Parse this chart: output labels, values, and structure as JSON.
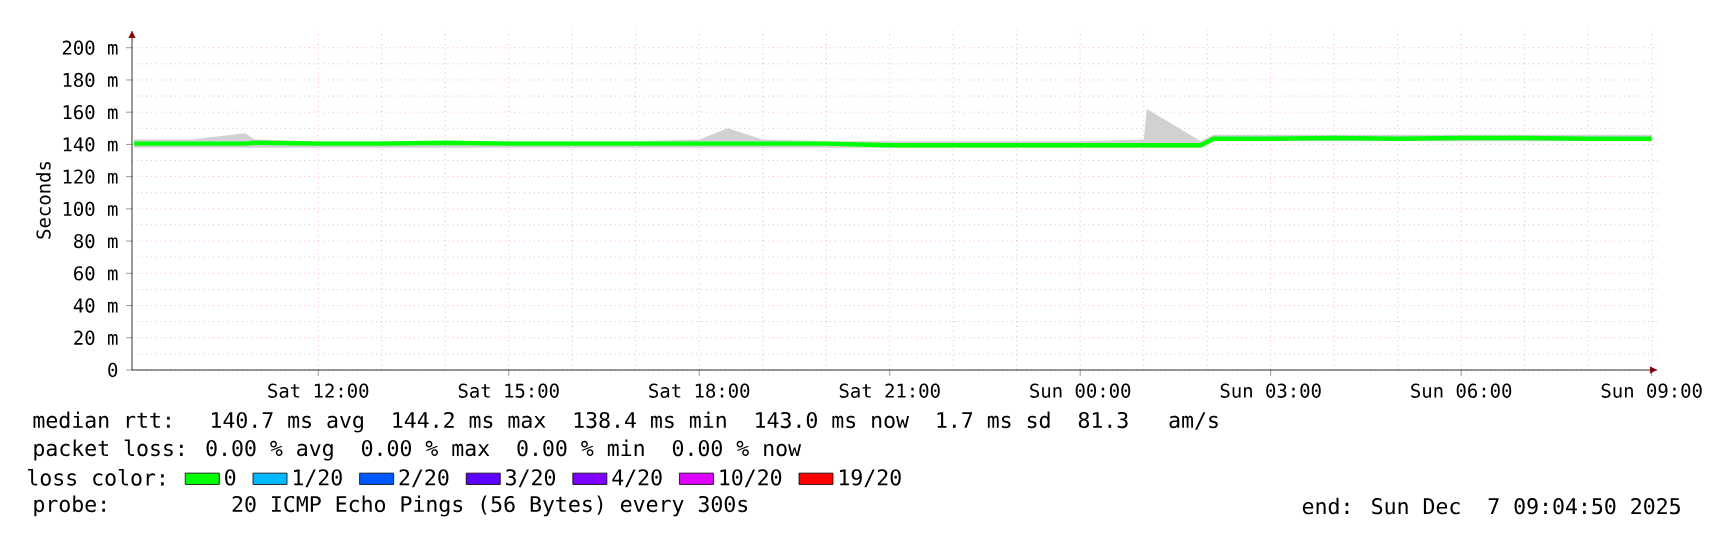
{
  "chart_data": {
    "type": "line",
    "ylabel": "Seconds",
    "legend_title": "loss color:",
    "legend": "bottom",
    "grid": true,
    "x": [
      "2025-12-06T09:06",
      "2025-12-06T10:00",
      "2025-12-06T10:51",
      "2025-12-06T11:00",
      "2025-12-06T12:00",
      "2025-12-06T13:00",
      "2025-12-06T14:00",
      "2025-12-06T15:00",
      "2025-12-06T16:00",
      "2025-12-06T17:00",
      "2025-12-06T18:00",
      "2025-12-06T18:27",
      "2025-12-06T19:00",
      "2025-12-06T20:00",
      "2025-12-06T21:00",
      "2025-12-06T22:00",
      "2025-12-06T23:00",
      "2025-12-07T00:00",
      "2025-12-07T01:00",
      "2025-12-07T01:03",
      "2025-12-07T01:54",
      "2025-12-07T02:06",
      "2025-12-07T03:00",
      "2025-12-07T04:00",
      "2025-12-07T05:00",
      "2025-12-07T06:00",
      "2025-12-07T07:00",
      "2025-12-07T08:00",
      "2025-12-07T09:00"
    ],
    "xlim": [
      "2025-12-06T09:04",
      "2025-12-07T09:06"
    ],
    "xticks": [
      {
        "value": "2025-12-06T12:00",
        "label": "Sat 12:00"
      },
      {
        "value": "2025-12-06T15:00",
        "label": "Sat 15:00"
      },
      {
        "value": "2025-12-06T18:00",
        "label": "Sat 18:00"
      },
      {
        "value": "2025-12-06T21:00",
        "label": "Sat 21:00"
      },
      {
        "value": "2025-12-07T00:00",
        "label": "Sun 00:00"
      },
      {
        "value": "2025-12-07T03:00",
        "label": "Sun 03:00"
      },
      {
        "value": "2025-12-07T06:00",
        "label": "Sun 06:00"
      },
      {
        "value": "2025-12-07T09:00",
        "label": "Sun 09:00"
      }
    ],
    "ylim": [
      0,
      211
    ],
    "yticks": [
      0,
      {
        "value": 20,
        "label": "20 m"
      },
      {
        "value": 40,
        "label": "40 m"
      },
      {
        "value": 60,
        "label": "60 m"
      },
      {
        "value": 80,
        "label": "80 m"
      },
      {
        "value": 100,
        "label": "100 m"
      },
      {
        "value": 120,
        "label": "120 m"
      },
      {
        "value": 140,
        "label": "140 m"
      },
      {
        "value": 160,
        "label": "160 m"
      },
      {
        "value": 180,
        "label": "180 m"
      },
      {
        "value": 200,
        "label": "200 m"
      }
    ],
    "series": [
      {
        "name": "0",
        "color": "#00ff00",
        "values": [
          140.5,
          140.5,
          140.5,
          141,
          140.5,
          140.5,
          141,
          140.5,
          140.5,
          140.5,
          140.5,
          140.5,
          140.5,
          140.5,
          139.5,
          139.5,
          139.5,
          139.5,
          139.5,
          139.5,
          139.5,
          143.5,
          143.5,
          144,
          143.5,
          144,
          144,
          143.5,
          143.5
        ],
        "lower": [
          138,
          138,
          138,
          138,
          138,
          138,
          138,
          138,
          138,
          138,
          138,
          138,
          138,
          138,
          138,
          138,
          138,
          138,
          138,
          138,
          138,
          142,
          142,
          142,
          142,
          142,
          142,
          142,
          142
        ],
        "upper": [
          143,
          143,
          147,
          143,
          142,
          142,
          142,
          142,
          142,
          142,
          143,
          150,
          143,
          142,
          142,
          142,
          142,
          142,
          143,
          162,
          142,
          146,
          146,
          146,
          146,
          146,
          146,
          146,
          146
        ]
      },
      {
        "name": "1/20",
        "color": "#00b8ff",
        "values": [
          null,
          null,
          null,
          null,
          null,
          null,
          null,
          null,
          null,
          null,
          null,
          null,
          null,
          null,
          null,
          null,
          null,
          null,
          null,
          null,
          null,
          null,
          null,
          null,
          null,
          null,
          null,
          null,
          null
        ]
      },
      {
        "name": "2/20",
        "color": "#0059ff",
        "values": [
          null,
          null,
          null,
          null,
          null,
          null,
          null,
          null,
          null,
          null,
          null,
          null,
          null,
          null,
          null,
          null,
          null,
          null,
          null,
          null,
          null,
          null,
          null,
          null,
          null,
          null,
          null,
          null,
          null
        ]
      },
      {
        "name": "3/20",
        "color": "#5e00ff",
        "values": [
          null,
          null,
          null,
          null,
          null,
          null,
          null,
          null,
          null,
          null,
          null,
          null,
          null,
          null,
          null,
          null,
          null,
          null,
          null,
          null,
          null,
          null,
          null,
          null,
          null,
          null,
          null,
          null,
          null
        ]
      },
      {
        "name": "4/20",
        "color": "#7e00ff",
        "values": [
          null,
          null,
          null,
          null,
          null,
          null,
          null,
          null,
          null,
          null,
          null,
          null,
          null,
          null,
          null,
          null,
          null,
          null,
          null,
          null,
          null,
          null,
          null,
          null,
          null,
          null,
          null,
          null,
          null
        ]
      },
      {
        "name": "10/20",
        "color": "#dd00ff",
        "values": [
          null,
          null,
          null,
          null,
          null,
          null,
          null,
          null,
          null,
          null,
          null,
          null,
          null,
          null,
          null,
          null,
          null,
          null,
          null,
          null,
          null,
          null,
          null,
          null,
          null,
          null,
          null,
          null,
          null
        ]
      },
      {
        "name": "19/20",
        "color": "#ff0000",
        "values": [
          null,
          null,
          null,
          null,
          null,
          null,
          null,
          null,
          null,
          null,
          null,
          null,
          null,
          null,
          null,
          null,
          null,
          null,
          null,
          null,
          null,
          null,
          null,
          null,
          null,
          null,
          null,
          null,
          null
        ]
      }
    ],
    "annotations": [
      "median rtt:  140.7 ms avg  144.2 ms max  138.4 ms min  143.0 ms now  1.7 ms sd  81.3   am/s",
      "packet loss: 0.00 % avg  0.00 % max  0.00 % min  0.00 % now",
      "probe:       20 ICMP Echo Pings (56 Bytes) every 300s",
      "end: Sun Dec  7 09:04:50 2025"
    ]
  }
}
